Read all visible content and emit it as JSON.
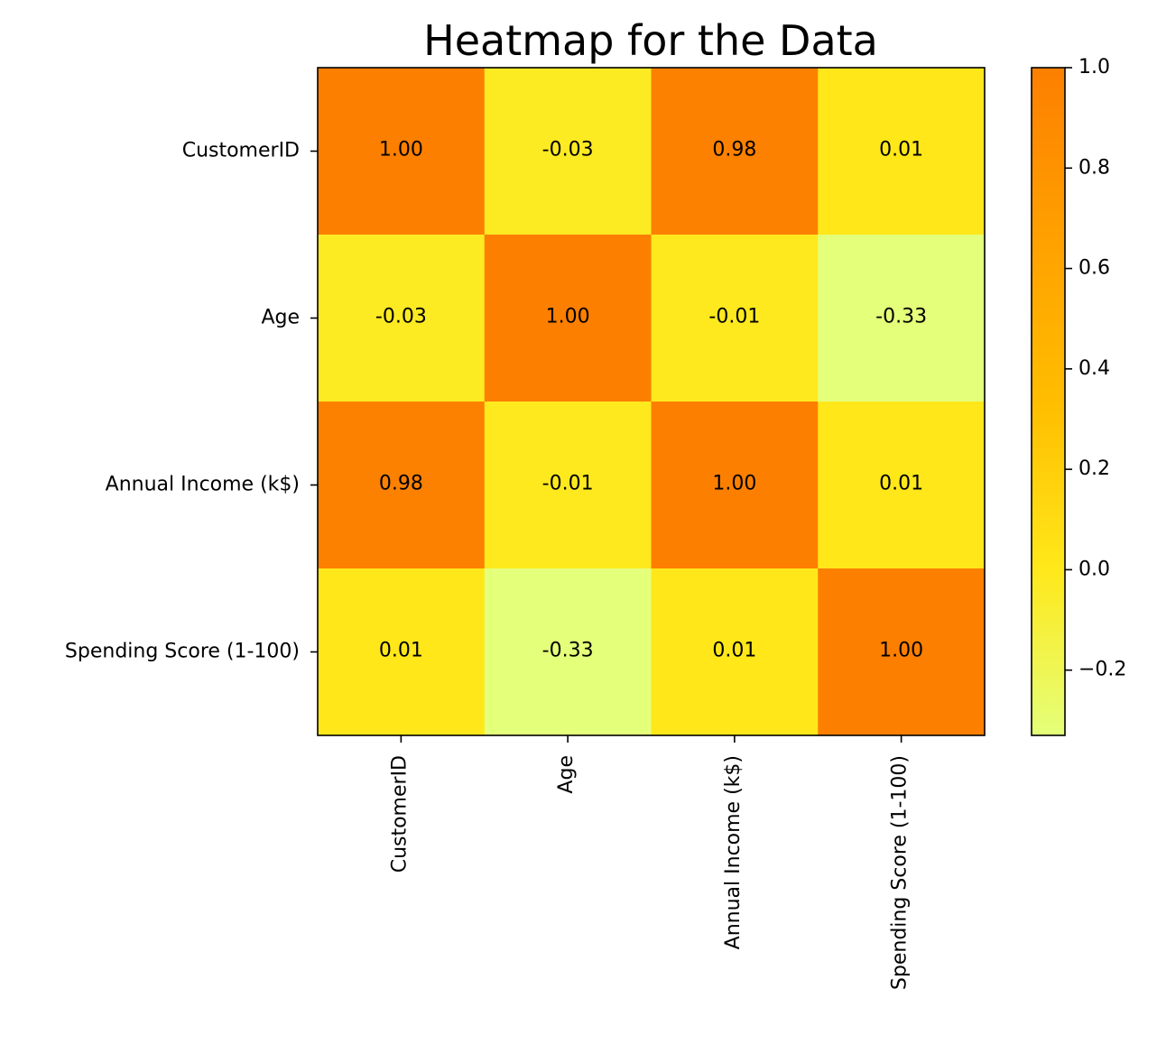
{
  "chart_data": {
    "type": "heatmap",
    "title": "Heatmap for the Data",
    "xlabel": "",
    "ylabel": "",
    "categories": [
      "CustomerID",
      "Age",
      "Annual Income (k$)",
      "Spending Score (1-100)"
    ],
    "values": [
      [
        1.0,
        -0.03,
        0.98,
        0.01
      ],
      [
        -0.03,
        1.0,
        -0.01,
        -0.33
      ],
      [
        0.98,
        -0.01,
        1.0,
        0.01
      ],
      [
        0.01,
        -0.33,
        0.01,
        1.0
      ]
    ],
    "value_labels": [
      [
        "1.00",
        "-0.03",
        "0.98",
        "0.01"
      ],
      [
        "-0.03",
        "1.00",
        "-0.01",
        "-0.33"
      ],
      [
        "0.98",
        "-0.01",
        "1.00",
        "0.01"
      ],
      [
        "0.01",
        "-0.33",
        "0.01",
        "1.00"
      ]
    ],
    "colorbar": {
      "range": [
        -0.33,
        1.0
      ],
      "ticks": [
        -0.2,
        0.0,
        0.2,
        0.4,
        0.6,
        0.8,
        1.0
      ],
      "tick_labels": [
        "−0.2",
        "0.0",
        "0.2",
        "0.4",
        "0.6",
        "0.8",
        "1.0"
      ]
    },
    "colormap": "Wistia",
    "colormap_stops": [
      "#e4ff7a",
      "#ffe81a",
      "#ffbd00",
      "#ffa000",
      "#fc7f00"
    ],
    "grid": false
  }
}
